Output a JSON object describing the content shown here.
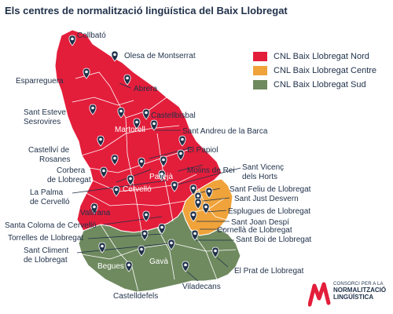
{
  "title": "Els centres de normalització lingüística del Baix Llobregat",
  "legend": [
    {
      "label": "CNL Baix Llobregat Nord",
      "color": "#e31e3b"
    },
    {
      "label": "CNL Baix Llobregat Centre",
      "color": "#f0a33a"
    },
    {
      "label": "CNL Baix Llobregat Sud",
      "color": "#6f8a5f"
    }
  ],
  "labels": {
    "collbato": "Collbató",
    "olesa": "Olesa de Montserrat",
    "esparreguera": "Esparreguera",
    "abrera": "Abrera",
    "sant_esteve_1": "Sant Esteve",
    "sant_esteve_2": "Sesrovires",
    "martorell": "Martorell",
    "castellbisbal": "Castellbisbal",
    "sant_andreu": "Sant Andreu de la Barca",
    "el_papiol": "El Papiol",
    "castellvi_1": "Castellví de",
    "castellvi_2": "Rosanes",
    "corbera_1": "Corbera",
    "corbera_2": "de Llobregat",
    "pallejà": "Pallejà",
    "molins": "Molins de Rei",
    "sant_vicenc_1": "Sant Vicenç",
    "sant_vicenc_2": "dels Horts",
    "cervello": "Cervelló",
    "la_palma_1": "La Palma",
    "la_palma_2": "de Cervelló",
    "sant_feliu": "Sant Feliu de Llobregat",
    "sant_just": "Sant Just Desvern",
    "esplugues": "Esplugues de Llobregat",
    "vallirana": "Vallirana",
    "santa_coloma": "Santa Coloma de Cervelló",
    "sant_joan": "Sant Joan Despí",
    "cornella": "Cornellà de Llobregat",
    "torrelles": "Torrelles de Llobregat",
    "sant_boi": "Sant Boi de Llobregat",
    "sant_climent_1": "Sant Climent",
    "sant_climent_2": "de Llobregat",
    "begues": "Begues",
    "gava": "Gavà",
    "el_prat": "El Prat de Llobregat",
    "viladecans": "Viladecans",
    "castelldefels": "Castelldefels"
  },
  "logo": {
    "line1": "CONSORCI PER A LA",
    "line2": "NORMALITZACIÓ",
    "line3": "LINGÜÍSTICA",
    "color": "#e31e3b"
  },
  "pin_color": "#1f3049"
}
